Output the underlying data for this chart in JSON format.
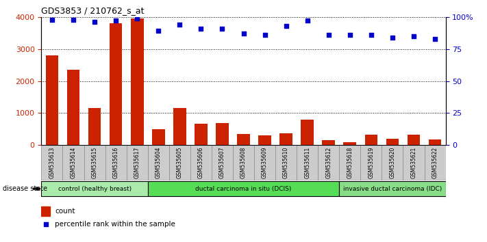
{
  "title": "GDS3853 / 210762_s_at",
  "samples": [
    "GSM535613",
    "GSM535614",
    "GSM535615",
    "GSM535616",
    "GSM535617",
    "GSM535604",
    "GSM535605",
    "GSM535606",
    "GSM535607",
    "GSM535608",
    "GSM535609",
    "GSM535610",
    "GSM535611",
    "GSM535612",
    "GSM535618",
    "GSM535619",
    "GSM535620",
    "GSM535621",
    "GSM535622"
  ],
  "counts": [
    2800,
    2350,
    1170,
    3800,
    3950,
    490,
    1170,
    680,
    700,
    350,
    300,
    380,
    800,
    150,
    100,
    320,
    190,
    320,
    180
  ],
  "percentiles": [
    98,
    98,
    96,
    97,
    99,
    89,
    94,
    91,
    91,
    87,
    86,
    93,
    97,
    86,
    86,
    86,
    84,
    85,
    83
  ],
  "groups": [
    {
      "label": "control (healthy breast)",
      "start": 0,
      "end": 5,
      "color": "#aaeaaa"
    },
    {
      "label": "ductal carcinoma in situ (DCIS)",
      "start": 5,
      "end": 14,
      "color": "#55dd55"
    },
    {
      "label": "invasive ductal carcinoma (IDC)",
      "start": 14,
      "end": 19,
      "color": "#88dd88"
    }
  ],
  "bar_color": "#CC2200",
  "dot_color": "#0000CC",
  "ylim_left": [
    0,
    4000
  ],
  "ylim_right": [
    0,
    100
  ],
  "yticks_left": [
    0,
    1000,
    2000,
    3000,
    4000
  ],
  "yticks_right": [
    0,
    25,
    50,
    75,
    100
  ],
  "left_tick_color": "#CC2200",
  "right_tick_color": "#0000CC",
  "background_color": "#ffffff",
  "disease_state_label": "disease state",
  "legend_count_label": "count",
  "legend_percentile_label": "percentile rank within the sample",
  "label_box_color": "#cccccc",
  "grid_color": "#000000"
}
